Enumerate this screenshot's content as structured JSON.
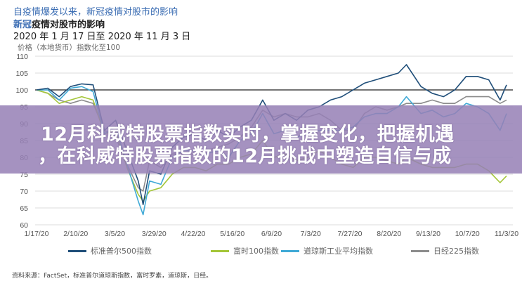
{
  "header": {
    "title_line1": "自疫情爆发以来，新冠疫情对股市的影响",
    "title_line2_blue": "新冠",
    "title_line2_rest": "疫情对股市的影响",
    "date_range": "2020 年 1 月 17 日至 2020 年 11 月 3 日"
  },
  "banner": {
    "line1": "12月科威特股票指数实时，掌握变化，把握机遇",
    "line2": "，在科威特股票指数的12月挑战中塑造自信与成"
  },
  "source": "资料来源：FactSet，标准普尔道琼斯指数，富时罗素，道琼斯，日经。",
  "chart_data": {
    "type": "line",
    "ylabel": "价格（本地货币）指数化至100",
    "ylim": [
      60,
      110
    ],
    "yticks": [
      "60",
      "65",
      "70",
      "75",
      "80",
      "85",
      "90",
      "95",
      "100",
      "105",
      "110"
    ],
    "xlim": [
      "2020-01-17",
      "2020-11-03"
    ],
    "xticks": [
      "1/17/20",
      "2/10/20",
      "3/5/20",
      "3/29/20",
      "4/22/20",
      "5/16/20",
      "6/9/20",
      "7/3/20",
      "7/27/20",
      "8/20/20",
      "9/13/20",
      "10/7/20",
      "11/3/20"
    ],
    "grid": true,
    "reference_line": 100,
    "legend_position": "bottom",
    "x": [
      "2020-01-17",
      "2020-01-24",
      "2020-01-31",
      "2020-02-07",
      "2020-02-14",
      "2020-02-21",
      "2020-02-28",
      "2020-03-06",
      "2020-03-13",
      "2020-03-20",
      "2020-03-23",
      "2020-03-27",
      "2020-04-03",
      "2020-04-10",
      "2020-04-17",
      "2020-04-24",
      "2020-05-01",
      "2020-05-08",
      "2020-05-15",
      "2020-05-22",
      "2020-05-29",
      "2020-06-05",
      "2020-06-12",
      "2020-06-19",
      "2020-06-26",
      "2020-07-03",
      "2020-07-10",
      "2020-07-17",
      "2020-07-24",
      "2020-07-31",
      "2020-08-07",
      "2020-08-14",
      "2020-08-21",
      "2020-08-28",
      "2020-09-02",
      "2020-09-11",
      "2020-09-18",
      "2020-09-25",
      "2020-10-02",
      "2020-10-09",
      "2020-10-16",
      "2020-10-23",
      "2020-10-30",
      "2020-11-03"
    ],
    "series": [
      {
        "name": "标准普尔500指数",
        "color": "#1f4e79",
        "values": [
          100,
          100.5,
          98,
          101,
          101.8,
          101.5,
          88,
          91,
          82,
          73,
          66,
          76,
          75,
          83,
          86,
          87,
          85,
          88,
          86,
          89,
          91,
          97,
          91,
          93,
          91,
          94,
          95,
          97,
          98,
          100,
          102,
          103,
          104,
          105,
          107.5,
          101,
          99,
          98,
          100,
          104,
          104,
          103,
          97,
          101.5
        ]
      },
      {
        "name": "富时100指数",
        "color": "#a4c639",
        "values": [
          100,
          99,
          96,
          97,
          98,
          97,
          87,
          88,
          77,
          69,
          67,
          70,
          71,
          75,
          77,
          77,
          76,
          78,
          78,
          80,
          81,
          85,
          80,
          81,
          79,
          80,
          82,
          80,
          78,
          77,
          80,
          80,
          79,
          78,
          80,
          78,
          77,
          77,
          77,
          78,
          78,
          76,
          72.5,
          74.5
        ]
      },
      {
        "name": "道琼斯工业平均指数",
        "color": "#3fa9d6",
        "values": [
          100,
          100,
          97,
          100.5,
          101,
          99.5,
          87,
          89,
          78,
          67,
          63,
          73,
          72,
          80,
          82,
          82,
          81,
          82,
          80,
          85,
          87,
          93,
          87,
          88,
          86,
          87,
          88,
          88,
          88,
          89,
          92,
          93,
          93,
          95,
          98,
          93,
          94,
          92,
          93,
          96,
          95,
          93,
          88,
          93
        ]
      },
      {
        "name": "日经225指数",
        "color": "#8c8c8c",
        "values": [
          100,
          99,
          97,
          96,
          97,
          96,
          88,
          86,
          78,
          71,
          70,
          79,
          77,
          81,
          81,
          81,
          82,
          83,
          84,
          86,
          89,
          94,
          92,
          93,
          92,
          92,
          93,
          91,
          88,
          88,
          93,
          95,
          94,
          95,
          96,
          96,
          97,
          96,
          96,
          98,
          98,
          98,
          96,
          97
        ]
      }
    ]
  }
}
